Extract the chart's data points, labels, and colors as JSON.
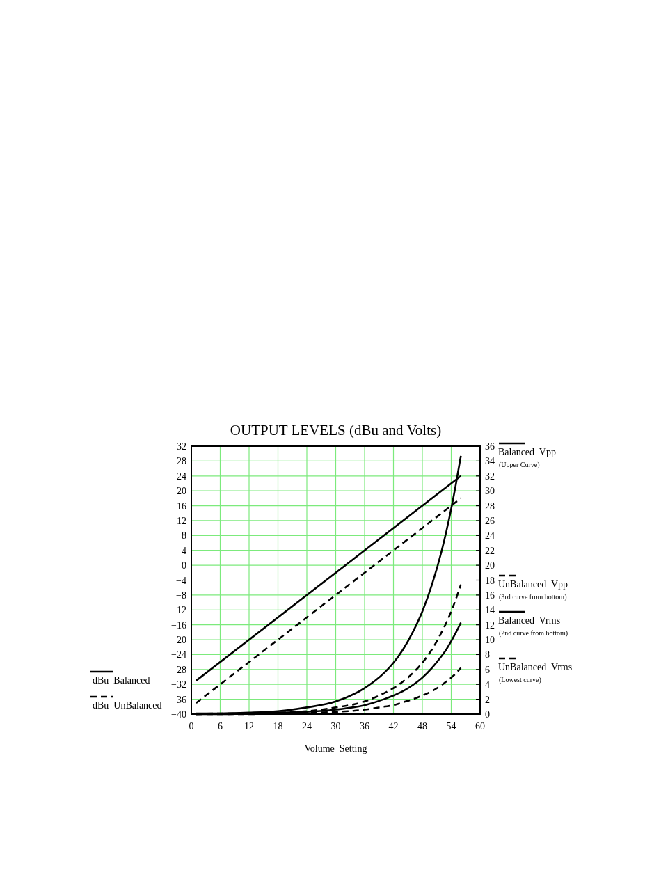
{
  "chart_data": {
    "type": "line",
    "title": "OUTPUT LEVELS (dBu and Volts)",
    "xlabel": "Volume  Setting",
    "xlim": [
      0,
      60
    ],
    "xticks": [
      0,
      6,
      12,
      18,
      24,
      30,
      36,
      42,
      48,
      54,
      60
    ],
    "ylim": [
      -40,
      32
    ],
    "yticks": [
      -40,
      -36,
      -32,
      -28,
      -24,
      -20,
      -16,
      -12,
      -8,
      -4,
      0,
      4,
      8,
      12,
      16,
      20,
      24,
      28,
      32
    ],
    "y2lim": [
      0,
      36
    ],
    "y2ticks": [
      0,
      2,
      4,
      6,
      8,
      10,
      12,
      14,
      16,
      18,
      20,
      22,
      24,
      26,
      28,
      30,
      32,
      34,
      36
    ],
    "grid": true,
    "legend": "right",
    "annotations": [
      "(Upper Curve)",
      "(3rd curve from bottom)",
      "(2nd curve from bottom)",
      "(Lowest curve)"
    ],
    "series": [
      {
        "name": "dBu  Balanced",
        "color": "#000000",
        "line_style": "solid",
        "x": [
          1,
          56
        ],
        "values": [
          -31,
          24
        ]
      },
      {
        "name": "dBu  UnBalanced",
        "color": "#000000",
        "line_style": "dashed",
        "x": [
          1,
          56
        ],
        "values": [
          -37,
          18
        ]
      },
      {
        "name": "Balanced  Vpp",
        "color": "#000000",
        "line_style": "solid",
        "axis": "y2",
        "x": [
          1,
          6,
          12,
          18,
          24,
          30,
          36,
          40,
          42,
          44,
          46,
          48,
          50,
          52,
          53,
          54,
          55,
          56
        ],
        "values": [
          0.1,
          0.1,
          0.2,
          0.4,
          0.9,
          1.7,
          3.5,
          5.5,
          6.9,
          8.7,
          11.0,
          13.8,
          17.4,
          21.9,
          24.6,
          27.6,
          31.0,
          34.7
        ]
      },
      {
        "name": "UnBalanced  Vpp",
        "color": "#000000",
        "line_style": "dashed",
        "axis": "y2",
        "x": [
          1,
          6,
          12,
          18,
          24,
          30,
          36,
          40,
          42,
          44,
          46,
          48,
          50,
          52,
          53,
          54,
          55,
          56
        ],
        "values": [
          0,
          0.1,
          0.1,
          0.2,
          0.4,
          0.9,
          1.7,
          2.8,
          3.5,
          4.4,
          5.5,
          6.9,
          8.7,
          11.0,
          12.3,
          13.8,
          15.5,
          17.4
        ]
      },
      {
        "name": "Balanced  Vrms",
        "color": "#000000",
        "line_style": "solid",
        "axis": "y2",
        "x": [
          1,
          6,
          12,
          18,
          24,
          30,
          36,
          40,
          42,
          44,
          46,
          48,
          50,
          52,
          53,
          54,
          55,
          56
        ],
        "values": [
          0,
          0,
          0.1,
          0.2,
          0.3,
          0.6,
          1.2,
          2.0,
          2.5,
          3.1,
          3.9,
          4.9,
          6.2,
          7.8,
          8.7,
          9.8,
          11.0,
          12.3
        ]
      },
      {
        "name": "UnBalanced  Vrms",
        "color": "#000000",
        "line_style": "dashed",
        "axis": "y2",
        "x": [
          1,
          6,
          12,
          18,
          24,
          30,
          36,
          40,
          42,
          44,
          46,
          48,
          50,
          52,
          53,
          54,
          55,
          56
        ],
        "values": [
          0,
          0,
          0,
          0.1,
          0.2,
          0.3,
          0.6,
          1.0,
          1.2,
          1.6,
          2.0,
          2.5,
          3.1,
          3.9,
          4.4,
          4.9,
          5.5,
          6.2
        ]
      }
    ]
  }
}
